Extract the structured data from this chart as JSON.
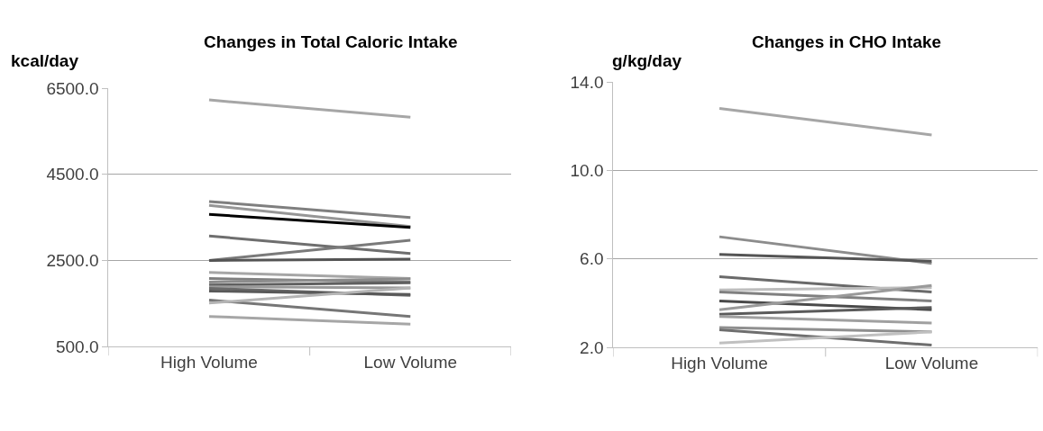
{
  "chart_data": [
    {
      "type": "line",
      "title": "Changes in Total Caloric Intake",
      "ylabel": "kcal/day",
      "categories": [
        "High Volume",
        "Low Volume"
      ],
      "ylim": [
        500,
        6500
      ],
      "yticks": [
        {
          "value": 500,
          "label": "500.0"
        },
        {
          "value": 2500,
          "label": "2500.0"
        },
        {
          "value": 4500,
          "label": "4500.0"
        },
        {
          "value": 6500,
          "label": "6500.0"
        }
      ],
      "grid": "y",
      "marker": "none",
      "line_style": "solid",
      "series": [
        {
          "color": "#a6a6a6",
          "values": [
            6230,
            5830
          ]
        },
        {
          "color": "#7f7f7f",
          "values": [
            3870,
            3500
          ]
        },
        {
          "color": "#969696",
          "values": [
            3780,
            3290
          ]
        },
        {
          "color": "#000000",
          "values": [
            3570,
            3270
          ]
        },
        {
          "color": "#6e6e6e",
          "values": [
            3070,
            2660
          ]
        },
        {
          "color": "#7a7a7a",
          "values": [
            2500,
            2970
          ]
        },
        {
          "color": "#545454",
          "values": [
            2500,
            2530
          ]
        },
        {
          "color": "#a6a6a6",
          "values": [
            2220,
            2080
          ]
        },
        {
          "color": "#7f7f7f",
          "values": [
            2080,
            2000
          ]
        },
        {
          "color": "#8c8c8c",
          "values": [
            2000,
            2070
          ]
        },
        {
          "color": "#5f5f5f",
          "values": [
            1930,
            1980
          ]
        },
        {
          "color": "#9a9a9a",
          "values": [
            1890,
            1860
          ]
        },
        {
          "color": "#6a6a6a",
          "values": [
            1850,
            1690
          ]
        },
        {
          "color": "#595959",
          "values": [
            1790,
            1710
          ]
        },
        {
          "color": "#767676",
          "values": [
            1580,
            1200
          ]
        },
        {
          "color": "#b4b4b4",
          "values": [
            1510,
            1860
          ]
        },
        {
          "color": "#a6a6a6",
          "values": [
            1200,
            1020
          ]
        }
      ]
    },
    {
      "type": "line",
      "title": "Changes in CHO Intake",
      "ylabel": "g/kg/day",
      "categories": [
        "High Volume",
        "Low Volume"
      ],
      "ylim": [
        2,
        14
      ],
      "yticks": [
        {
          "value": 2,
          "label": "2.0"
        },
        {
          "value": 6,
          "label": "6.0"
        },
        {
          "value": 10,
          "label": "10.0"
        },
        {
          "value": 14,
          "label": "14.0"
        }
      ],
      "grid": "y",
      "marker": "none",
      "line_style": "solid",
      "series": [
        {
          "color": "#a6a6a6",
          "values": [
            12.8,
            11.6
          ]
        },
        {
          "color": "#8c8c8c",
          "values": [
            7.0,
            5.8
          ]
        },
        {
          "color": "#545454",
          "values": [
            6.2,
            5.9
          ]
        },
        {
          "color": "#6a6a6a",
          "values": [
            5.2,
            4.5
          ]
        },
        {
          "color": "#bdbdbd",
          "values": [
            4.6,
            4.7
          ]
        },
        {
          "color": "#808080",
          "values": [
            4.5,
            4.1
          ]
        },
        {
          "color": "#4a4a4a",
          "values": [
            4.1,
            3.7
          ]
        },
        {
          "color": "#9a9a9a",
          "values": [
            3.7,
            4.8
          ]
        },
        {
          "color": "#5a5a5a",
          "values": [
            3.5,
            3.8
          ]
        },
        {
          "color": "#a0a0a0",
          "values": [
            3.4,
            3.1
          ]
        },
        {
          "color": "#8f8f8f",
          "values": [
            2.9,
            2.7
          ]
        },
        {
          "color": "#6e6e6e",
          "values": [
            2.8,
            2.1
          ]
        },
        {
          "color": "#c0c0c0",
          "values": [
            2.2,
            2.7
          ]
        }
      ]
    }
  ]
}
